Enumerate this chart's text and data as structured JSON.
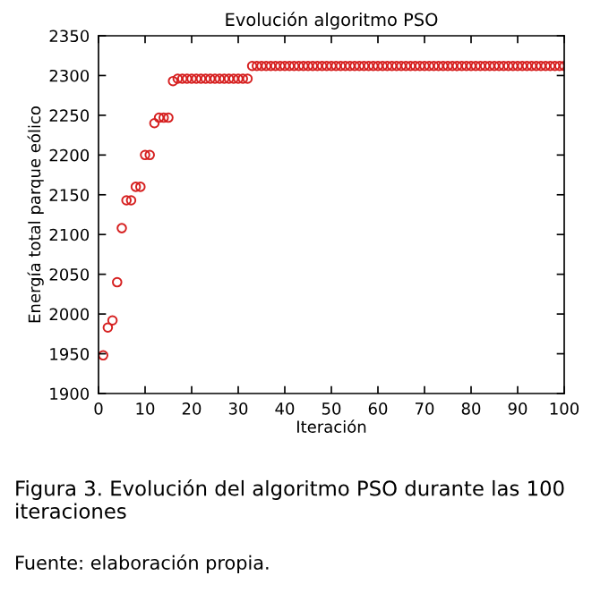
{
  "chart_data": {
    "type": "scatter",
    "title": "Evolución algoritmo PSO",
    "xlabel": "Iteración",
    "ylabel": "Energía total parque eólico",
    "x": [
      1,
      2,
      3,
      4,
      5,
      6,
      7,
      8,
      9,
      10,
      11,
      12,
      13,
      14,
      15,
      16,
      17,
      18,
      19,
      20,
      21,
      22,
      23,
      24,
      25,
      26,
      27,
      28,
      29,
      30,
      31,
      32,
      33,
      34,
      35,
      36,
      37,
      38,
      39,
      40,
      41,
      42,
      43,
      44,
      45,
      46,
      47,
      48,
      49,
      50,
      51,
      52,
      53,
      54,
      55,
      56,
      57,
      58,
      59,
      60,
      61,
      62,
      63,
      64,
      65,
      66,
      67,
      68,
      69,
      70,
      71,
      72,
      73,
      74,
      75,
      76,
      77,
      78,
      79,
      80,
      81,
      82,
      83,
      84,
      85,
      86,
      87,
      88,
      89,
      90,
      91,
      92,
      93,
      94,
      95,
      96,
      97,
      98,
      99,
      100
    ],
    "series": [
      {
        "color": "#d62020",
        "values": [
          1948,
          1983,
          1992,
          2040,
          2108,
          2143,
          2143,
          2160,
          2160,
          2200,
          2200,
          2240,
          2247,
          2247,
          2247,
          2293,
          2296,
          2296,
          2296,
          2296,
          2296,
          2296,
          2296,
          2296,
          2296,
          2296,
          2296,
          2296,
          2296,
          2296,
          2296,
          2296,
          2312,
          2312,
          2312,
          2312,
          2312,
          2312,
          2312,
          2312,
          2312,
          2312,
          2312,
          2312,
          2312,
          2312,
          2312,
          2312,
          2312,
          2312,
          2312,
          2312,
          2312,
          2312,
          2312,
          2312,
          2312,
          2312,
          2312,
          2312,
          2312,
          2312,
          2312,
          2312,
          2312,
          2312,
          2312,
          2312,
          2312,
          2312,
          2312,
          2312,
          2312,
          2312,
          2312,
          2312,
          2312,
          2312,
          2312,
          2312,
          2312,
          2312,
          2312,
          2312,
          2312,
          2312,
          2312,
          2312,
          2312,
          2312,
          2312,
          2312,
          2312,
          2312,
          2312,
          2312,
          2312,
          2312,
          2312,
          2312
        ]
      }
    ],
    "marker": "circle",
    "xlim": [
      0,
      100
    ],
    "ylim": [
      1900,
      2350
    ],
    "xticks": [
      0,
      10,
      20,
      30,
      40,
      50,
      60,
      70,
      80,
      90,
      100
    ],
    "yticks": [
      1900,
      1950,
      2000,
      2050,
      2100,
      2150,
      2200,
      2250,
      2300,
      2350
    ],
    "grid": false,
    "annotations": [
      "Figura 3. Evolución del algoritmo PSO durante las 100 iteraciones",
      "Fuente: elaboración propia."
    ]
  }
}
